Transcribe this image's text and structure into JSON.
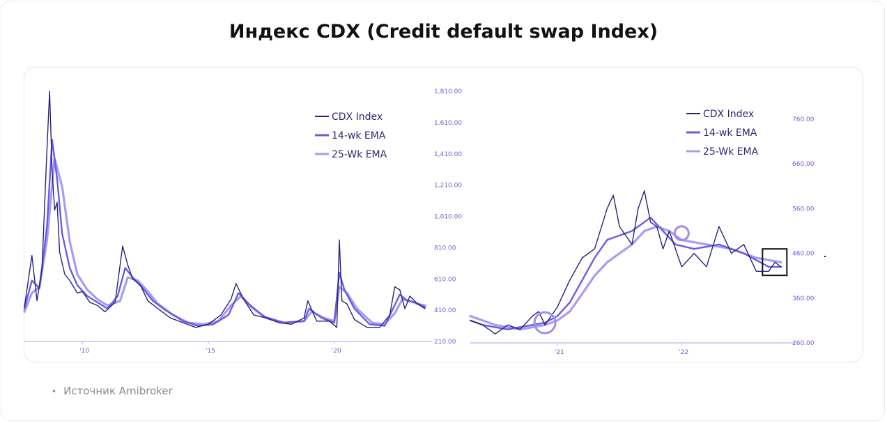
{
  "title": "Индекс CDX (Credit default swap Index)",
  "source": "Источник Amibroker",
  "colors": {
    "cdx": "#27227a",
    "ema14": "#6a5ce0",
    "ema25": "#a69cf5",
    "axis": "#b9b2f0",
    "tick": "#6b5fd6",
    "annotation": "#111111"
  },
  "chart_data": [
    {
      "type": "line",
      "title": "",
      "x_ticks": [
        "'10",
        "'15",
        "'20"
      ],
      "y_ticks": [
        "1,810.00",
        "1,610.00",
        "1,410.00",
        "1,210.00",
        "1,010.00",
        "810.00",
        "610.00",
        "410.00",
        "210.00"
      ],
      "ylim": [
        210,
        1810
      ],
      "xlim": [
        2007.7,
        2023.6
      ],
      "grid": false,
      "legend_position": "top-right",
      "series": [
        {
          "name": "CDX Index",
          "x": [
            2007.7,
            2008.0,
            2008.2,
            2008.4,
            2008.6,
            2008.7,
            2008.8,
            2008.9,
            2009.0,
            2009.1,
            2009.3,
            2009.5,
            2009.8,
            2010.0,
            2010.3,
            2010.6,
            2010.9,
            2011.3,
            2011.6,
            2011.8,
            2012.0,
            2012.3,
            2012.6,
            2013.0,
            2013.5,
            2014.0,
            2014.5,
            2015.0,
            2015.5,
            2015.9,
            2016.1,
            2016.4,
            2016.8,
            2017.3,
            2017.8,
            2018.3,
            2018.8,
            2018.95,
            2019.3,
            2019.8,
            2020.1,
            2020.2,
            2020.3,
            2020.5,
            2020.8,
            2021.3,
            2021.8,
            2022.2,
            2022.4,
            2022.6,
            2022.8,
            2023.0,
            2023.3,
            2023.6
          ],
          "values": [
            430,
            760,
            470,
            680,
            1450,
            1810,
            1300,
            1050,
            1100,
            780,
            640,
            600,
            520,
            530,
            460,
            440,
            400,
            460,
            820,
            700,
            610,
            570,
            470,
            420,
            360,
            330,
            300,
            320,
            380,
            480,
            580,
            480,
            380,
            360,
            330,
            320,
            360,
            470,
            340,
            340,
            300,
            860,
            470,
            450,
            350,
            300,
            300,
            380,
            560,
            540,
            420,
            500,
            450,
            420
          ]
        },
        {
          "name": "14-wk EMA",
          "x": [
            2007.7,
            2008.0,
            2008.3,
            2008.6,
            2008.8,
            2009.0,
            2009.2,
            2009.5,
            2009.8,
            2010.2,
            2010.6,
            2011.0,
            2011.4,
            2011.7,
            2012.0,
            2012.4,
            2012.8,
            2013.3,
            2014.0,
            2014.6,
            2015.2,
            2015.8,
            2016.2,
            2016.6,
            2017.2,
            2018.0,
            2018.8,
            2019.0,
            2019.5,
            2020.0,
            2020.2,
            2020.4,
            2020.8,
            2021.4,
            2022.0,
            2022.3,
            2022.6,
            2022.9,
            2023.2,
            2023.6
          ],
          "values": [
            420,
            600,
            550,
            950,
            1500,
            1250,
            900,
            680,
            570,
            500,
            460,
            420,
            500,
            680,
            620,
            550,
            470,
            410,
            340,
            310,
            320,
            380,
            520,
            450,
            370,
            330,
            340,
            420,
            360,
            330,
            650,
            540,
            420,
            320,
            310,
            410,
            510,
            470,
            460,
            430
          ]
        },
        {
          "name": "25-Wk EMA",
          "x": [
            2007.7,
            2008.0,
            2008.3,
            2008.6,
            2008.9,
            2009.2,
            2009.5,
            2009.8,
            2010.2,
            2010.6,
            2011.0,
            2011.5,
            2011.8,
            2012.2,
            2012.6,
            2013.0,
            2013.6,
            2014.2,
            2014.8,
            2015.4,
            2015.9,
            2016.3,
            2016.7,
            2017.3,
            2018.0,
            2018.8,
            2019.1,
            2019.6,
            2020.0,
            2020.2,
            2020.5,
            2020.9,
            2021.5,
            2022.0,
            2022.4,
            2022.7,
            2023.0,
            2023.3,
            2023.6
          ],
          "values": [
            400,
            520,
            560,
            860,
            1380,
            1200,
            850,
            640,
            540,
            480,
            440,
            470,
            620,
            600,
            530,
            450,
            380,
            330,
            320,
            340,
            440,
            500,
            430,
            360,
            330,
            340,
            400,
            360,
            340,
            560,
            520,
            420,
            330,
            320,
            390,
            480,
            470,
            450,
            440
          ]
        }
      ]
    },
    {
      "type": "line",
      "title": "",
      "x_ticks": [
        "'21",
        "'22"
      ],
      "y_ticks": [
        "760.00",
        "660.00",
        "560.00",
        "460.00",
        "360.00",
        "260.00"
      ],
      "ylim": [
        260,
        760
      ],
      "xlim": [
        2020.3,
        2022.85
      ],
      "grid": false,
      "legend_position": "top-right",
      "series": [
        {
          "name": "CDX Index",
          "x": [
            2020.3,
            2020.4,
            2020.5,
            2020.6,
            2020.7,
            2020.8,
            2020.85,
            2020.9,
            2021.0,
            2021.1,
            2021.2,
            2021.3,
            2021.4,
            2021.45,
            2021.5,
            2021.6,
            2021.65,
            2021.7,
            2021.75,
            2021.8,
            2021.85,
            2021.9,
            2022.0,
            2022.1,
            2022.2,
            2022.3,
            2022.4,
            2022.5,
            2022.6,
            2022.7,
            2022.75,
            2022.8
          ],
          "values": [
            310,
            300,
            280,
            300,
            290,
            320,
            330,
            300,
            340,
            400,
            450,
            470,
            560,
            590,
            520,
            480,
            560,
            600,
            530,
            520,
            470,
            510,
            430,
            460,
            430,
            520,
            460,
            480,
            420,
            420,
            440,
            430
          ]
        },
        {
          "name": "14-wk EMA",
          "x": [
            2020.3,
            2020.4,
            2020.6,
            2020.8,
            2020.9,
            2021.0,
            2021.1,
            2021.2,
            2021.3,
            2021.4,
            2021.5,
            2021.6,
            2021.7,
            2021.75,
            2021.85,
            2021.95,
            2022.1,
            2022.3,
            2022.5,
            2022.7,
            2022.8
          ],
          "values": [
            310,
            300,
            290,
            300,
            305,
            320,
            350,
            400,
            450,
            490,
            500,
            510,
            530,
            540,
            510,
            480,
            470,
            480,
            460,
            430,
            430
          ]
        },
        {
          "name": "25-Wk EMA",
          "x": [
            2020.3,
            2020.5,
            2020.7,
            2020.9,
            2021.0,
            2021.1,
            2021.2,
            2021.3,
            2021.4,
            2021.5,
            2021.6,
            2021.7,
            2021.8,
            2021.9,
            2022.0,
            2022.2,
            2022.4,
            2022.6,
            2022.8
          ],
          "values": [
            320,
            300,
            290,
            300,
            310,
            330,
            370,
            410,
            440,
            460,
            480,
            510,
            520,
            510,
            490,
            480,
            470,
            450,
            440
          ]
        }
      ]
    }
  ]
}
